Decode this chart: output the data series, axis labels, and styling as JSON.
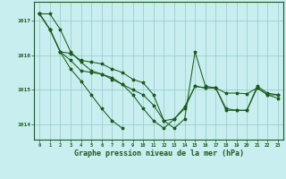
{
  "title": "Graphe pression niveau de la mer (hPa)",
  "bg_color": "#c8eef0",
  "grid_color": "#90c8c8",
  "line_color": "#1a5c1a",
  "hours": [
    0,
    1,
    2,
    3,
    4,
    5,
    6,
    7,
    8,
    9,
    10,
    11,
    12,
    13,
    14,
    15,
    16,
    17,
    18,
    19,
    20,
    21,
    22,
    23
  ],
  "line1": [
    1017.2,
    1017.2,
    1016.75,
    1016.1,
    1015.8,
    1015.55,
    1015.45,
    1015.3,
    1015.15,
    1014.85,
    1014.45,
    1014.1,
    1013.88,
    1014.15,
    1014.5,
    1015.1,
    1015.05,
    1015.05,
    1014.4,
    1014.4,
    1014.4,
    1015.05,
    1014.85,
    1014.85
  ],
  "line2": [
    1017.2,
    1016.75,
    1016.1,
    1015.6,
    1015.25,
    1014.85,
    1014.45,
    1014.1,
    1013.88,
    null,
    null,
    null,
    null,
    null,
    null,
    null,
    null,
    null,
    null,
    null,
    null,
    null,
    null,
    null
  ],
  "line3": [
    1017.2,
    1016.75,
    1016.1,
    1016.05,
    1015.85,
    1015.8,
    1015.75,
    1015.6,
    1015.5,
    1015.3,
    1015.2,
    1014.85,
    1014.1,
    1014.15,
    1014.45,
    1015.1,
    1015.05,
    1015.05,
    1014.9,
    1014.9,
    1014.88,
    1015.05,
    1014.85,
    1014.75
  ],
  "line4": [
    1017.2,
    1016.75,
    1016.1,
    1015.85,
    1015.55,
    1015.5,
    1015.45,
    1015.35,
    1015.15,
    1015.0,
    1014.85,
    1014.55,
    1014.1,
    1013.88,
    1014.15,
    1016.1,
    1015.1,
    1015.05,
    1014.45,
    1014.4,
    1014.4,
    1015.1,
    1014.9,
    1014.85
  ],
  "ylim": [
    1013.55,
    1017.55
  ],
  "yticks": [
    1014,
    1015,
    1016,
    1017
  ],
  "xlim": [
    -0.5,
    23.5
  ]
}
